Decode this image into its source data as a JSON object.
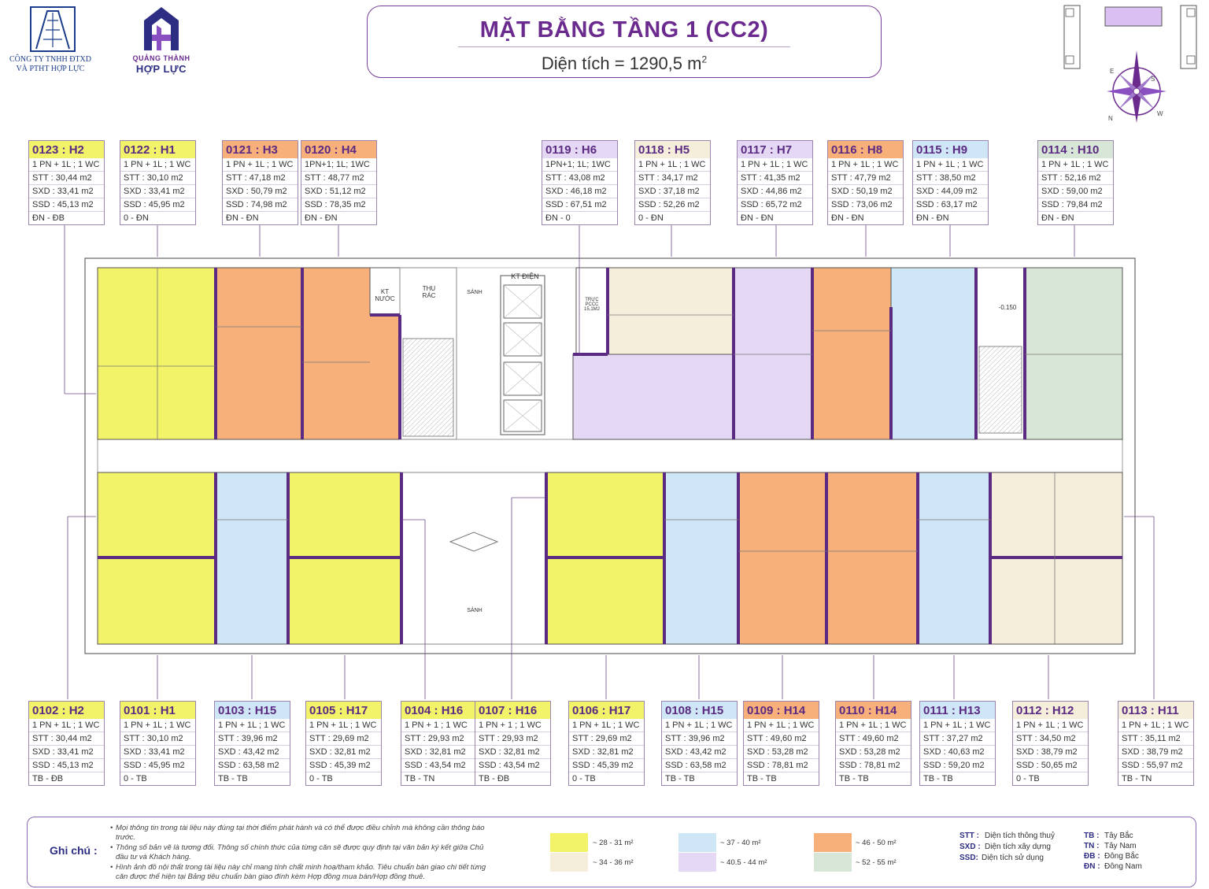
{
  "header": {
    "company_line1": "CÔNG TY TNHH ĐTXD",
    "company_line2": "VÀ PTHT HỢP LỰC",
    "brand_line1": "QUẢNG THÀNH",
    "brand_line2": "HỢP LỰC",
    "title": "MẶT BẰNG TẦNG 1 (CC2)",
    "area_label": "Diện tích = 1290,5 m",
    "area_sup": "2"
  },
  "compass": {
    "labels": [
      "E",
      "S",
      "W",
      "N"
    ]
  },
  "top_units": [
    {
      "code": "0123 : H2",
      "type": "1 PN + 1L ; 1 WC",
      "stt": "STT : 30,44 m2",
      "sxd": "SXD : 33,41 m2",
      "ssd": "SSD : 45,13 m2",
      "dir": "ĐN - ĐB",
      "color": "#f3f36a"
    },
    {
      "code": "0122 : H1",
      "type": "1 PN + 1L ; 1 WC",
      "stt": "STT : 30,10 m2",
      "sxd": "SXD : 33,41 m2",
      "ssd": "SSD : 45,95 m2",
      "dir": "0 - ĐN",
      "color": "#f3f36a"
    },
    {
      "code": "0121 : H3",
      "type": "1 PN + 1L ; 1 WC",
      "stt": "STT : 47,18 m2",
      "sxd": "SXD : 50,79 m2",
      "ssd": "SSD : 74,98 m2",
      "dir": "ĐN - ĐN",
      "color": "#f8b07a"
    },
    {
      "code": "0120 : H4",
      "type": "1PN+1; 1L; 1WC",
      "stt": "STT : 48,77 m2",
      "sxd": "SXD : 51,12 m2",
      "ssd": "SSD : 78,35 m2",
      "dir": "ĐN - ĐN",
      "color": "#f8b07a"
    },
    {
      "code": "0119 : H6",
      "type": "1PN+1; 1L; 1WC",
      "stt": "STT : 43,08 m2",
      "sxd": "SXD : 46,18 m2",
      "ssd": "SSD : 67,51 m2",
      "dir": "ĐN - 0",
      "color": "#e4d8f4"
    },
    {
      "code": "0118 : H5",
      "type": "1 PN + 1L ; 1 WC",
      "stt": "STT : 34,17 m2",
      "sxd": "SXD : 37,18 m2",
      "ssd": "SSD : 52,26 m2",
      "dir": "0 - ĐN",
      "color": "#f5eedb"
    },
    {
      "code": "0117 : H7",
      "type": "1 PN + 1L ; 1 WC",
      "stt": "STT : 41,35 m2",
      "sxd": "SXD : 44,86 m2",
      "ssd": "SSD : 65,72 m2",
      "dir": "ĐN - ĐN",
      "color": "#e4d8f4"
    },
    {
      "code": "0116 : H8",
      "type": "1 PN + 1L ; 1 WC",
      "stt": "STT : 47,79 m2",
      "sxd": "SXD : 50,19 m2",
      "ssd": "SSD : 73,06 m2",
      "dir": "ĐN - ĐN",
      "color": "#f8b07a"
    },
    {
      "code": "0115 : H9",
      "type": "1 PN + 1L ; 1 WC",
      "stt": "STT : 38,50 m2",
      "sxd": "SXD : 44,09 m2",
      "ssd": "SSD : 63,17 m2",
      "dir": "ĐN - ĐN",
      "color": "#cfe6f7"
    },
    {
      "code": "0114 : H10",
      "type": "1 PN + 1L ; 1 WC",
      "stt": "STT : 52,16 m2",
      "sxd": "SXD : 59,00 m2",
      "ssd": "SSD : 79,84 m2",
      "dir": "ĐN - ĐN",
      "color": "#d8e6d8"
    }
  ],
  "bottom_units": [
    {
      "code": "0102 : H2",
      "type": "1 PN + 1L ; 1 WC",
      "stt": "STT : 30,44 m2",
      "sxd": "SXD : 33,41 m2",
      "ssd": "SSD : 45,13 m2",
      "dir": "TB - ĐB",
      "color": "#f3f36a"
    },
    {
      "code": "0101 : H1",
      "type": "1 PN + 1L ; 1 WC",
      "stt": "STT : 30,10 m2",
      "sxd": "SXD : 33,41 m2",
      "ssd": "SSD : 45,95 m2",
      "dir": "0 - TB",
      "color": "#f3f36a"
    },
    {
      "code": "0103 : H15",
      "type": "1 PN + 1L ; 1 WC",
      "stt": "STT : 39,96 m2",
      "sxd": "SXD : 43,42 m2",
      "ssd": "SSD : 63,58 m2",
      "dir": "TB - TB",
      "color": "#cfe6f7"
    },
    {
      "code": "0105 : H17",
      "type": "1 PN + 1L ; 1 WC",
      "stt": "STT : 29,69 m2",
      "sxd": "SXD : 32,81 m2",
      "ssd": "SSD : 45,39 m2",
      "dir": "0 - TB",
      "color": "#f3f36a"
    },
    {
      "code": "0104 : H16",
      "type": "1 PN + 1 ; 1 WC",
      "stt": "STT : 29,93 m2",
      "sxd": "SXD : 32,81 m2",
      "ssd": "SSD : 43,54 m2",
      "dir": "TB - TN",
      "color": "#f3f36a"
    },
    {
      "code": "0107 : H16",
      "type": "1 PN + 1 ; 1 WC",
      "stt": "STT : 29,93 m2",
      "sxd": "SXD : 32,81 m2",
      "ssd": "SSD : 43,54 m2",
      "dir": "TB - ĐB",
      "color": "#f3f36a"
    },
    {
      "code": "0106 : H17",
      "type": "1 PN + 1L ; 1 WC",
      "stt": "STT : 29,69 m2",
      "sxd": "SXD : 32,81 m2",
      "ssd": "SSD : 45,39 m2",
      "dir": "0 - TB",
      "color": "#f3f36a"
    },
    {
      "code": "0108 : H15",
      "type": "1 PN + 1L ; 1 WC",
      "stt": "STT : 39,96 m2",
      "sxd": "SXD : 43,42 m2",
      "ssd": "SSD : 63,58 m2",
      "dir": "TB - TB",
      "color": "#cfe6f7"
    },
    {
      "code": "0109 : H14",
      "type": "1 PN + 1L ; 1 WC",
      "stt": "STT : 49,60 m2",
      "sxd": "SXD : 53,28 m2",
      "ssd": "SSD : 78,81 m2",
      "dir": "TB - TB",
      "color": "#f8b07a"
    },
    {
      "code": "0110 : H14",
      "type": "1 PN + 1L ; 1 WC",
      "stt": "STT : 49,60 m2",
      "sxd": "SXD : 53,28 m2",
      "ssd": "SSD : 78,81 m2",
      "dir": "TB - TB",
      "color": "#f8b07a"
    },
    {
      "code": "0111 : H13",
      "type": "1 PN + 1L ; 1 WC",
      "stt": "STT : 37,27 m2",
      "sxd": "SXD : 40,63 m2",
      "ssd": "SSD : 59,20 m2",
      "dir": "TB - TB",
      "color": "#cfe6f7"
    },
    {
      "code": "0112 : H12",
      "type": "1 PN + 1L ; 1 WC",
      "stt": "STT : 34,50 m2",
      "sxd": "SXD : 38,79 m2",
      "ssd": "SSD : 50,65 m2",
      "dir": "0 - TB",
      "color": "#f5eedb"
    },
    {
      "code": "0113 : H11",
      "type": "1 PN + 1L ; 1 WC",
      "stt": "STT : 35,11 m2",
      "sxd": "SXD : 38,79 m2",
      "ssd": "SSD : 55,97 m2",
      "dir": "TB - TN",
      "color": "#f5eedb"
    }
  ],
  "plan_labels": {
    "kt_nuoc": "KT NƯỚC",
    "thu_rac": "THU RÁC",
    "sanh_top": "SẢNH",
    "kt_dien": "KT ĐIỆN",
    "truc_pccc": "TRỰC PCCC 15,1M2",
    "level": "-0.150",
    "sanh_bottom": "SẢNH"
  },
  "notes": {
    "label": "Ghi chú :",
    "items": [
      "Mọi thông tin trong tài liệu này đúng tại thời điểm phát hành và có thể được điều chỉnh mà không cần thông báo trước.",
      "Thông số bản vẽ là tương đối. Thông số chính thức của từng căn sẽ được quy định tại văn bản ký kết giữa Chủ đầu tư và Khách hàng.",
      "Hình ảnh đồ nội thất trong tài liệu này chỉ mang tính chất minh hoạ/tham khảo. Tiêu chuẩn bàn giao chi tiết từng căn được thể hiện tại Bảng tiêu chuẩn bàn giao đính kèm Hợp đồng mua bán/Hợp đồng thuê."
    ]
  },
  "legend": [
    {
      "range": "~ 28 - 31 m²",
      "color": "#f3f36a"
    },
    {
      "range": "~ 34 - 36 m²",
      "color": "#f5eedb"
    },
    {
      "range": "~ 37 - 40 m²",
      "color": "#cfe6f7"
    },
    {
      "range": "~ 40.5 - 44 m²",
      "color": "#e4d8f4"
    },
    {
      "range": "~ 46 - 50 m²",
      "color": "#f8b07a"
    },
    {
      "range": "~ 52 - 55 m²",
      "color": "#d8e6d8"
    }
  ],
  "abbreviations": [
    {
      "key": "STT :",
      "value": "Diện tích thông thuỷ"
    },
    {
      "key": "SXD :",
      "value": "Diện tích xây dựng"
    },
    {
      "key": "SSD:",
      "value": "Diện tích sử dụng"
    }
  ],
  "directions": [
    {
      "key": "TB :",
      "value": "Tây Bắc"
    },
    {
      "key": "TN :",
      "value": "Tây Nam"
    },
    {
      "key": "ĐB :",
      "value": "Đông Bắc"
    },
    {
      "key": "ĐN :",
      "value": "Đông Nam"
    }
  ]
}
